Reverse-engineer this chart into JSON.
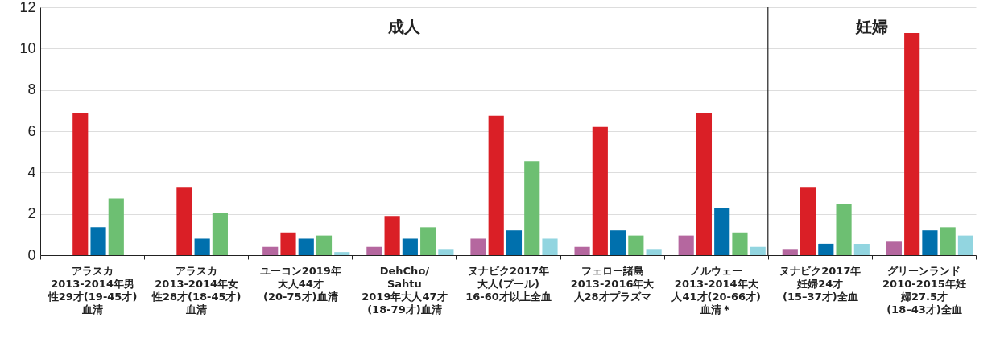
{
  "chart_data": {
    "type": "bar",
    "categories": [
      "アラスカ2013-2014年男性29才(19-45才)血清",
      "アラスカ2013-2014年女性28才(18-45才)血清",
      "ユーコン2019年大人44才(20-75才)血清",
      "DehCho/ Sahtu 2019年大人47才(18-79才)血清",
      "ヌナビク2017年大人(プール)16-60才以上全血",
      "フェロー諸島2013-2016年大人28才プラズマ",
      "ノルウェー2013-2014年大人41才(20-66才)血清＊",
      "ヌナビク2017年妊婦24才(15–37才)全血",
      "グリーンランド2010-2015年妊婦27.5才(18–43才)全血"
    ],
    "series": [
      {
        "color": "#b5679f",
        "values": [
          null,
          null,
          0.4,
          0.4,
          0.8,
          0.4,
          0.95,
          0.3,
          0.65
        ]
      },
      {
        "color": "#da1f26",
        "values": [
          6.9,
          3.3,
          1.1,
          1.9,
          6.75,
          6.2,
          6.9,
          3.3,
          10.75
        ]
      },
      {
        "color": "#0070ad",
        "values": [
          1.35,
          0.8,
          0.8,
          0.8,
          1.2,
          1.2,
          2.3,
          0.55,
          1.2
        ]
      },
      {
        "color": "#6dbf72",
        "values": [
          2.75,
          2.05,
          0.95,
          1.35,
          4.55,
          0.95,
          1.1,
          2.45,
          1.35
        ]
      },
      {
        "color": "#92d5e0",
        "values": [
          null,
          null,
          0.15,
          0.3,
          0.8,
          0.3,
          0.4,
          0.55,
          0.95
        ]
      }
    ],
    "ylim": [
      0,
      12
    ],
    "yticks": [
      0,
      2,
      4,
      6,
      8,
      10,
      12
    ],
    "grid": "y",
    "ref_lines": [
      {
        "axis": "x",
        "value": "ヌナビク2017年妊婦24才(15–37才)全血",
        "color": "#333333"
      }
    ],
    "annotations": [
      "成人",
      "妊婦"
    ]
  }
}
